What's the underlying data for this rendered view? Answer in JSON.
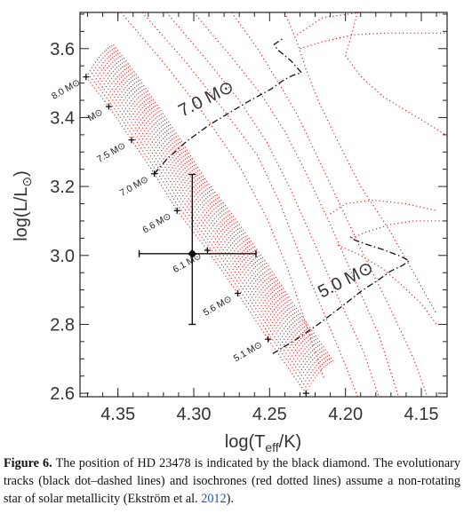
{
  "chart_data": {
    "type": "line",
    "xlabel": "log(T_eff/K)",
    "ylabel": "log(L/L⊙)",
    "xlim": [
      4.375,
      4.133
    ],
    "ylim": [
      2.59,
      3.705
    ],
    "x_ticks": [
      "4.35",
      "4.30",
      "4.25",
      "4.20",
      "4.15"
    ],
    "x_tick_values": [
      4.35,
      4.3,
      4.25,
      4.2,
      4.15
    ],
    "y_ticks": [
      "2.6",
      "2.8",
      "3.0",
      "3.2",
      "3.4",
      "3.6"
    ],
    "y_tick_values": [
      2.6,
      2.8,
      3.0,
      3.2,
      3.4,
      3.6
    ],
    "star": {
      "x": 4.301,
      "y": 3.005,
      "x_err": [
        4.336,
        4.259
      ],
      "y_err": [
        2.8,
        3.235
      ]
    },
    "zams_masses": [
      {
        "label": "8.0 M⊙",
        "x": 4.371,
        "y": 3.518
      },
      {
        "label": "M⊙",
        "x": 4.356,
        "y": 3.432
      },
      {
        "label": "7.5 M⊙",
        "x": 4.341,
        "y": 3.335
      },
      {
        "label": "7.0 M⊙",
        "x": 4.326,
        "y": 3.237
      },
      {
        "label": "6.6 M⊙",
        "x": 4.311,
        "y": 3.13
      },
      {
        "label": "6.1 M⊙",
        "x": 4.291,
        "y": 3.015
      },
      {
        "label": "5.6 M⊙",
        "x": 4.271,
        "y": 2.89
      },
      {
        "label": "5.1 M⊙",
        "x": 4.251,
        "y": 2.757
      },
      {
        "label": "",
        "x": 4.226,
        "y": 2.6
      }
    ],
    "series": [
      {
        "type": "evolutionary-track",
        "label": "7.0 M⊙",
        "x": [
          4.326,
          4.318,
          4.305,
          4.29,
          4.275,
          4.262,
          4.25,
          4.241,
          4.235,
          4.229,
          4.236,
          4.245,
          4.247,
          4.241
        ],
        "y": [
          3.237,
          3.278,
          3.33,
          3.378,
          3.418,
          3.452,
          3.48,
          3.508,
          3.522,
          3.53,
          3.565,
          3.598,
          3.612,
          3.63
        ]
      },
      {
        "type": "evolutionary-track",
        "label": "5.0 M⊙",
        "x": [
          4.248,
          4.233,
          4.218,
          4.203,
          4.19,
          4.178,
          4.17,
          4.162,
          4.158,
          4.165,
          4.176,
          4.186,
          4.194,
          4.198
        ],
        "y": [
          2.715,
          2.755,
          2.8,
          2.85,
          2.895,
          2.93,
          2.955,
          2.972,
          2.985,
          3.0,
          3.018,
          3.032,
          3.045,
          3.058
        ]
      }
    ]
  },
  "plot_labels": {
    "track_7": "7.0 M⊙",
    "track_5": "5.0 M⊙"
  },
  "caption": {
    "fig_label": "Figure 6.",
    "text": " The position of HD 23478 is indicated by the black diamond. The evolutionary tracks (black dot–dashed lines) and isochrones (red dotted lines) assume a non-rotating star of solar metallicity (Ekström et al. ",
    "cite": "2012",
    "tail": ")."
  }
}
